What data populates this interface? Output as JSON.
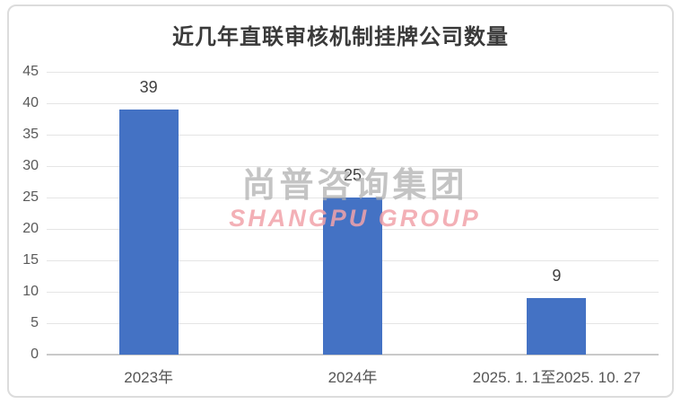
{
  "chart_data": {
    "type": "bar",
    "title": "近几年直联审核机制挂牌公司数量",
    "categories": [
      "2023年",
      "2024年",
      "2025. 1. 1至2025. 10. 27"
    ],
    "values": [
      39,
      25,
      9
    ],
    "data_labels": [
      "39",
      "25",
      "9"
    ],
    "xlabel": "",
    "ylabel": "",
    "ylim": [
      0,
      45
    ],
    "ytick_step": 5,
    "yticks": [
      0,
      5,
      10,
      15,
      20,
      25,
      30,
      35,
      40,
      45
    ],
    "grid": true,
    "legend": false,
    "bar_color": "#4472C4"
  },
  "watermark": {
    "line1": "尚普咨询集团",
    "line2": "SHANGPU GROUP",
    "line1_color": "#AEAEAE",
    "line2_color": "#F2A3AA"
  },
  "colors": {
    "bar": "#4472C4",
    "gridline": "#E5E5E5",
    "axis_line": "#C9C9C9",
    "tick_label": "#595959",
    "value_label": "#3F3F3F",
    "title": "#3A3A3A",
    "frame_border": "#DCDCDC",
    "background": "#FFFFFF"
  }
}
